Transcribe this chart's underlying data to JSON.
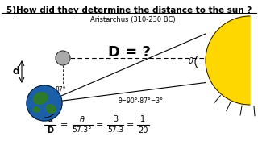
{
  "title": "5)How did they determine the distance to the sun ?",
  "subtitle": "Aristarchus (310-230 BC)",
  "D_label": "D = ?",
  "angle_label": "θ",
  "angle87": "87°",
  "angle_eq": "θ=90°-87°=3°",
  "d_label": "d",
  "bg_color": "#ffffff",
  "sun_color": "#FFD700",
  "earth_blue": "#1a5fa8",
  "earth_green": "#2d7a2d",
  "moon_color": "#aaaaaa"
}
